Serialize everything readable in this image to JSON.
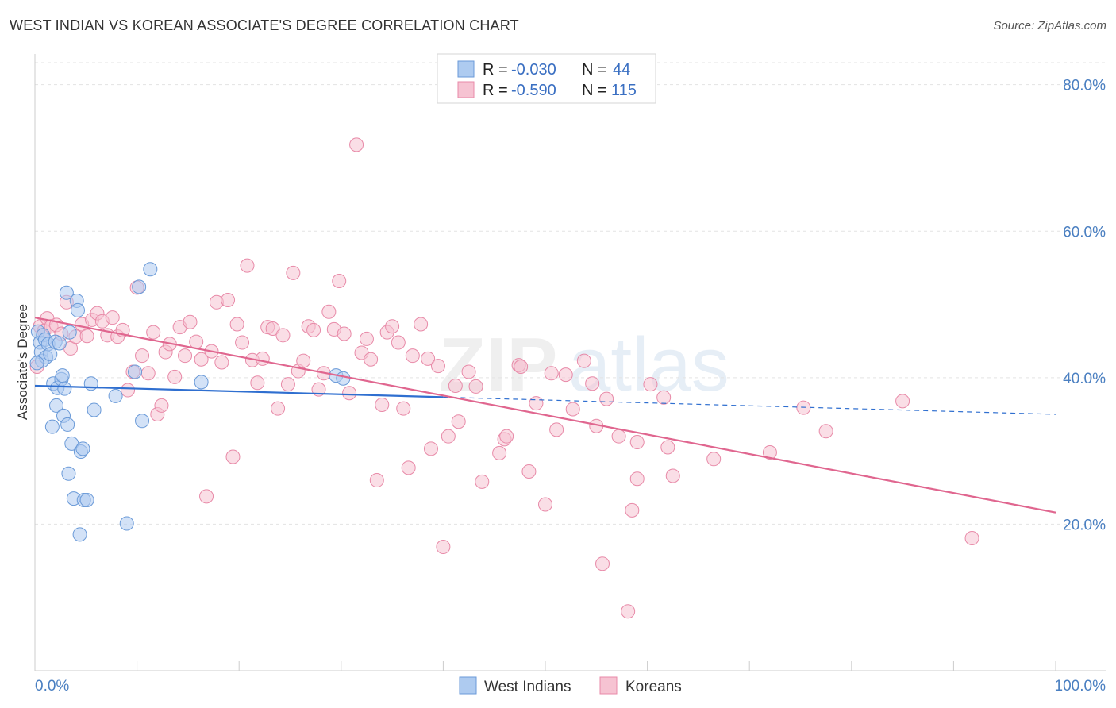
{
  "title": "WEST INDIAN VS KOREAN ASSOCIATE'S DEGREE CORRELATION CHART",
  "source": "Source: ZipAtlas.com",
  "watermark": {
    "zip": "ZIP",
    "atlas": "atlas"
  },
  "colors": {
    "west_indian_fill": "#aecbf0",
    "west_indian_stroke": "#6a9ad8",
    "west_indian_line": "#2f6fd0",
    "korean_fill": "#f6c3d2",
    "korean_stroke": "#e88aa8",
    "korean_line": "#e0668f",
    "axis_label": "#4a7fc1",
    "grid": "#e3e3e3"
  },
  "legend": {
    "rows": [
      {
        "r_label": "R = ",
        "r_value": "-0.030",
        "n_label": "N = ",
        "n_value": "44"
      },
      {
        "r_label": "R = ",
        "r_value": "-0.590",
        "n_label": "N = ",
        "n_value": "115"
      }
    ]
  },
  "chart_data": {
    "type": "scatter",
    "title": "WEST INDIAN VS KOREAN ASSOCIATE'S DEGREE CORRELATION CHART",
    "xlabel": "",
    "ylabel": "Associate's Degree",
    "xlim": [
      0,
      100
    ],
    "ylim": [
      0,
      83
    ],
    "x_tick_labels": [
      "0.0%",
      "100.0%"
    ],
    "y_ticks": [
      20,
      40,
      60,
      80
    ],
    "y_tick_labels": [
      "20.0%",
      "40.0%",
      "60.0%",
      "80.0%"
    ],
    "grid": true,
    "legend_position": "bottom",
    "series": [
      {
        "name": "West Indians",
        "r": -0.03,
        "n": 44,
        "trend": {
          "x": [
            0,
            100
          ],
          "y": [
            38.9,
            35.0
          ],
          "solid_until_x": 40
        },
        "points": [
          [
            0.3,
            46.3
          ],
          [
            0.5,
            44.8
          ],
          [
            0.6,
            43.5
          ],
          [
            0.7,
            42.3
          ],
          [
            0.8,
            45.8
          ],
          [
            1.0,
            45.2
          ],
          [
            1.1,
            42.8
          ],
          [
            1.3,
            44.6
          ],
          [
            1.5,
            43.2
          ],
          [
            1.7,
            33.3
          ],
          [
            1.8,
            39.2
          ],
          [
            2.0,
            44.9
          ],
          [
            2.1,
            36.2
          ],
          [
            2.2,
            38.6
          ],
          [
            2.4,
            44.7
          ],
          [
            2.6,
            39.8
          ],
          [
            2.7,
            40.3
          ],
          [
            2.8,
            34.8
          ],
          [
            2.9,
            38.5
          ],
          [
            3.1,
            51.6
          ],
          [
            3.2,
            33.6
          ],
          [
            3.3,
            26.9
          ],
          [
            3.4,
            46.2
          ],
          [
            3.6,
            31.0
          ],
          [
            3.8,
            23.5
          ],
          [
            4.1,
            50.5
          ],
          [
            4.2,
            49.2
          ],
          [
            4.4,
            18.6
          ],
          [
            4.5,
            29.9
          ],
          [
            4.7,
            30.3
          ],
          [
            4.8,
            23.3
          ],
          [
            5.1,
            23.3
          ],
          [
            5.5,
            39.2
          ],
          [
            5.8,
            35.6
          ],
          [
            7.9,
            37.5
          ],
          [
            9.0,
            20.1
          ],
          [
            9.8,
            40.8
          ],
          [
            10.2,
            52.4
          ],
          [
            10.5,
            34.1
          ],
          [
            11.3,
            54.8
          ],
          [
            16.3,
            39.4
          ],
          [
            29.5,
            40.3
          ],
          [
            30.2,
            39.9
          ],
          [
            0.2,
            42.0
          ]
        ]
      },
      {
        "name": "Koreans",
        "r": -0.59,
        "n": 115,
        "trend": {
          "x": [
            0,
            100
          ],
          "y": [
            48.2,
            21.6
          ]
        },
        "points": [
          [
            0.2,
            41.5
          ],
          [
            0.5,
            47.0
          ],
          [
            0.9,
            46.4
          ],
          [
            1.2,
            48.1
          ],
          [
            1.6,
            47.0
          ],
          [
            2.1,
            47.2
          ],
          [
            2.6,
            46.0
          ],
          [
            3.1,
            50.3
          ],
          [
            3.5,
            44.0
          ],
          [
            4.0,
            45.6
          ],
          [
            4.6,
            47.3
          ],
          [
            5.1,
            45.7
          ],
          [
            5.6,
            47.9
          ],
          [
            6.1,
            48.8
          ],
          [
            6.6,
            47.7
          ],
          [
            7.1,
            45.8
          ],
          [
            7.6,
            48.2
          ],
          [
            8.1,
            45.6
          ],
          [
            8.6,
            46.5
          ],
          [
            9.1,
            38.3
          ],
          [
            9.6,
            40.8
          ],
          [
            10.0,
            52.3
          ],
          [
            10.5,
            43.0
          ],
          [
            11.1,
            40.6
          ],
          [
            11.6,
            46.2
          ],
          [
            12.0,
            35.0
          ],
          [
            12.4,
            36.2
          ],
          [
            12.8,
            43.5
          ],
          [
            13.2,
            44.6
          ],
          [
            13.7,
            40.1
          ],
          [
            14.2,
            46.9
          ],
          [
            14.7,
            43.0
          ],
          [
            15.2,
            47.6
          ],
          [
            15.8,
            44.9
          ],
          [
            16.3,
            42.5
          ],
          [
            16.8,
            23.8
          ],
          [
            17.3,
            43.6
          ],
          [
            17.8,
            50.3
          ],
          [
            18.3,
            42.1
          ],
          [
            18.9,
            50.6
          ],
          [
            19.4,
            29.2
          ],
          [
            19.8,
            47.3
          ],
          [
            20.3,
            44.8
          ],
          [
            20.8,
            55.3
          ],
          [
            21.3,
            42.4
          ],
          [
            21.8,
            39.3
          ],
          [
            22.3,
            42.6
          ],
          [
            22.8,
            46.9
          ],
          [
            23.3,
            46.7
          ],
          [
            23.8,
            35.8
          ],
          [
            24.3,
            45.8
          ],
          [
            24.8,
            39.1
          ],
          [
            25.3,
            54.3
          ],
          [
            25.8,
            40.9
          ],
          [
            26.3,
            42.3
          ],
          [
            26.8,
            47.0
          ],
          [
            27.3,
            46.5
          ],
          [
            27.8,
            38.4
          ],
          [
            28.3,
            40.6
          ],
          [
            28.8,
            49.0
          ],
          [
            29.3,
            46.6
          ],
          [
            29.8,
            53.2
          ],
          [
            30.3,
            46.0
          ],
          [
            30.8,
            37.9
          ],
          [
            31.5,
            71.8
          ],
          [
            32.0,
            43.4
          ],
          [
            32.5,
            45.3
          ],
          [
            32.9,
            42.5
          ],
          [
            33.5,
            26.0
          ],
          [
            34.0,
            36.3
          ],
          [
            34.5,
            46.2
          ],
          [
            35.0,
            47.0
          ],
          [
            35.6,
            44.8
          ],
          [
            36.1,
            35.8
          ],
          [
            36.6,
            27.7
          ],
          [
            37.0,
            43.0
          ],
          [
            37.8,
            47.3
          ],
          [
            38.5,
            42.6
          ],
          [
            38.8,
            30.3
          ],
          [
            39.5,
            41.6
          ],
          [
            40.0,
            16.9
          ],
          [
            40.5,
            32.0
          ],
          [
            41.2,
            38.9
          ],
          [
            41.5,
            34.0
          ],
          [
            42.5,
            40.8
          ],
          [
            43.2,
            38.8
          ],
          [
            43.8,
            25.8
          ],
          [
            45.5,
            29.7
          ],
          [
            46.0,
            31.6
          ],
          [
            46.2,
            32.0
          ],
          [
            47.4,
            41.7
          ],
          [
            47.6,
            41.5
          ],
          [
            48.4,
            27.2
          ],
          [
            49.1,
            36.5
          ],
          [
            50.0,
            22.7
          ],
          [
            50.6,
            40.6
          ],
          [
            51.1,
            32.9
          ],
          [
            52.0,
            40.4
          ],
          [
            52.7,
            35.7
          ],
          [
            53.8,
            42.3
          ],
          [
            54.6,
            39.2
          ],
          [
            55.0,
            33.4
          ],
          [
            55.6,
            14.6
          ],
          [
            56.0,
            37.1
          ],
          [
            57.2,
            32.0
          ],
          [
            58.1,
            8.1
          ],
          [
            58.5,
            21.9
          ],
          [
            59.0,
            26.2
          ],
          [
            60.3,
            39.1
          ],
          [
            61.6,
            37.3
          ],
          [
            62.0,
            30.5
          ],
          [
            62.5,
            26.6
          ],
          [
            66.5,
            28.9
          ],
          [
            72.0,
            29.8
          ],
          [
            75.3,
            35.9
          ],
          [
            77.5,
            32.7
          ],
          [
            85.0,
            36.8
          ],
          [
            91.8,
            18.1
          ],
          [
            59.0,
            31.2
          ]
        ]
      }
    ]
  },
  "bottom_legend": {
    "west_indians": "West Indians",
    "koreans": "Koreans"
  }
}
